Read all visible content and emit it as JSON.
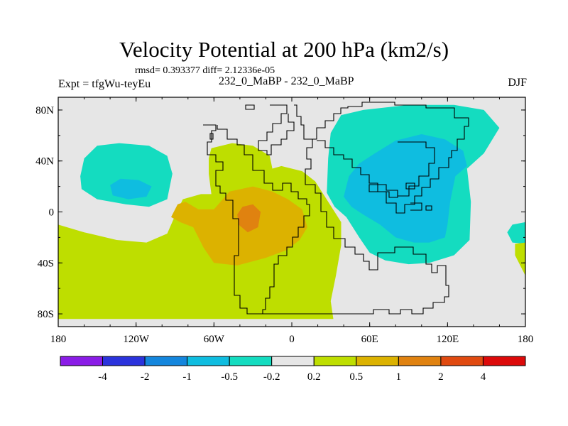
{
  "title": "Velocity Potential at 200 hPa (km2/s)",
  "stats": "rmsd= 0.393377 diff= 2.12336e-05",
  "experiment": "Expt = tfgWu-teyEu",
  "comparison": "232_0_MaBP - 232_0_MaBP",
  "season": "DJF",
  "chart_data": {
    "type": "heatmap",
    "title": "Velocity Potential at 200 hPa (km2/s)",
    "subtitle": "232_0_MaBP - 232_0_MaBP",
    "xlabel": "",
    "ylabel": "",
    "xlim": [
      -180,
      180
    ],
    "ylim": [
      -90,
      90
    ],
    "x_ticks": [
      {
        "value": -180,
        "label": "180"
      },
      {
        "value": -120,
        "label": "120W"
      },
      {
        "value": -60,
        "label": "60W"
      },
      {
        "value": 0,
        "label": "0"
      },
      {
        "value": 60,
        "label": "60E"
      },
      {
        "value": 120,
        "label": "120E"
      },
      {
        "value": 180,
        "label": "180"
      }
    ],
    "y_ticks": [
      {
        "value": 80,
        "label": "80N"
      },
      {
        "value": 40,
        "label": "40N"
      },
      {
        "value": 0,
        "label": "0"
      },
      {
        "value": -40,
        "label": "40S"
      },
      {
        "value": -80,
        "label": "80S"
      }
    ],
    "colorbar": {
      "levels": [
        "-4",
        "-2",
        "-1",
        "-0.5",
        "-0.2",
        "0.2",
        "0.5",
        "1",
        "2",
        "4"
      ],
      "colors": [
        "#8a1ce6",
        "#2b33dc",
        "#1486dd",
        "#0fbde0",
        "#14dcc0",
        "#e6e6e6",
        "#bede00",
        "#dcb200",
        "#e08210",
        "#e04a10",
        "#dc0a0a"
      ]
    },
    "regions": [
      {
        "name": "pacific-north-low",
        "level": "-0.5 to -0.2",
        "color": "#14dcc0",
        "points": [
          [
            -163,
            28
          ],
          [
            -160,
            42
          ],
          [
            -150,
            52
          ],
          [
            -133,
            54
          ],
          [
            -110,
            52
          ],
          [
            -96,
            44
          ],
          [
            -92,
            30
          ],
          [
            -96,
            10
          ],
          [
            -110,
            4
          ],
          [
            -128,
            6
          ],
          [
            -150,
            10
          ],
          [
            -162,
            18
          ]
        ]
      },
      {
        "name": "pacific-north-core",
        "level": "-1 to -0.5",
        "color": "#0fbde0",
        "points": [
          [
            -140,
            21
          ],
          [
            -132,
            26
          ],
          [
            -118,
            25
          ],
          [
            -108,
            20
          ],
          [
            -112,
            12
          ],
          [
            -126,
            10
          ],
          [
            -138,
            13
          ]
        ]
      },
      {
        "name": "atlantic-positive",
        "level": "0.2 to 0.5",
        "color": "#bede00",
        "points": [
          [
            -180,
            -10
          ],
          [
            -160,
            -16
          ],
          [
            -135,
            -22
          ],
          [
            -112,
            -24
          ],
          [
            -96,
            -17
          ],
          [
            -90,
            -3
          ],
          [
            -84,
            10
          ],
          [
            -70,
            14
          ],
          [
            -62,
            14
          ],
          [
            -64,
            30
          ],
          [
            -64,
            42
          ],
          [
            -62,
            50
          ],
          [
            -46,
            54
          ],
          [
            -30,
            52
          ],
          [
            -17,
            44
          ],
          [
            -15,
            34
          ],
          [
            -8,
            36
          ],
          [
            8,
            32
          ],
          [
            18,
            24
          ],
          [
            28,
            8
          ],
          [
            38,
            -8
          ],
          [
            38,
            -26
          ],
          [
            34,
            -50
          ],
          [
            30,
            -70
          ],
          [
            32,
            -84
          ],
          [
            -180,
            -84
          ]
        ]
      },
      {
        "name": "atlantic-positive-core",
        "level": "0.5 to 1",
        "color": "#dcb200",
        "points": [
          [
            -88,
            6
          ],
          [
            -82,
            8
          ],
          [
            -72,
            2
          ],
          [
            -60,
            2
          ],
          [
            -48,
            16
          ],
          [
            -30,
            20
          ],
          [
            -15,
            16
          ],
          [
            -3,
            10
          ],
          [
            8,
            2
          ],
          [
            12,
            -12
          ],
          [
            6,
            -22
          ],
          [
            -4,
            -30
          ],
          [
            -20,
            -36
          ],
          [
            -42,
            -42
          ],
          [
            -60,
            -40
          ],
          [
            -68,
            -28
          ],
          [
            -76,
            -12
          ],
          [
            -86,
            -8
          ],
          [
            -93,
            -4
          ]
        ]
      },
      {
        "name": "atlantic-positive-max",
        "level": "1 to 2",
        "color": "#e08210",
        "points": [
          [
            -38,
            4
          ],
          [
            -30,
            6
          ],
          [
            -24,
            0
          ],
          [
            -26,
            -12
          ],
          [
            -34,
            -16
          ],
          [
            -41,
            -10
          ],
          [
            -42,
            -2
          ]
        ]
      },
      {
        "name": "asia-pacific-low",
        "level": "-0.5 to -0.2",
        "color": "#14dcc0",
        "points": [
          [
            27,
            15
          ],
          [
            28,
            42
          ],
          [
            30,
            62
          ],
          [
            38,
            76
          ],
          [
            55,
            80
          ],
          [
            90,
            84
          ],
          [
            125,
            84
          ],
          [
            148,
            80
          ],
          [
            160,
            66
          ],
          [
            148,
            46
          ],
          [
            135,
            34
          ],
          [
            138,
            8
          ],
          [
            137,
            -22
          ],
          [
            125,
            -34
          ],
          [
            106,
            -40
          ],
          [
            90,
            -41
          ],
          [
            72,
            -38
          ],
          [
            60,
            -32
          ],
          [
            52,
            -20
          ],
          [
            42,
            -4
          ],
          [
            33,
            4
          ]
        ]
      },
      {
        "name": "asia-pacific-core",
        "level": "-1 to -0.5",
        "color": "#0fbde0",
        "points": [
          [
            40,
            12
          ],
          [
            44,
            28
          ],
          [
            52,
            38
          ],
          [
            64,
            46
          ],
          [
            80,
            56
          ],
          [
            100,
            61
          ],
          [
            118,
            57
          ],
          [
            132,
            48
          ],
          [
            135,
            36
          ],
          [
            126,
            28
          ],
          [
            122,
            8
          ],
          [
            120,
            -10
          ],
          [
            118,
            -20
          ],
          [
            106,
            -24
          ],
          [
            94,
            -24
          ],
          [
            80,
            -20
          ],
          [
            68,
            -10
          ],
          [
            55,
            -2
          ],
          [
            46,
            4
          ]
        ]
      },
      {
        "name": "dateline-south-low",
        "level": "-0.5 to -0.2",
        "color": "#14dcc0",
        "points": [
          [
            180,
            -8
          ],
          [
            170,
            -10
          ],
          [
            166,
            -16
          ],
          [
            170,
            -24
          ],
          [
            180,
            -25
          ]
        ]
      },
      {
        "name": "dateline-south-high",
        "level": "0.2 to 0.5",
        "color": "#bede00",
        "points": [
          [
            180,
            -24
          ],
          [
            172,
            -25
          ],
          [
            172,
            -34
          ],
          [
            180,
            -50
          ]
        ]
      }
    ]
  }
}
